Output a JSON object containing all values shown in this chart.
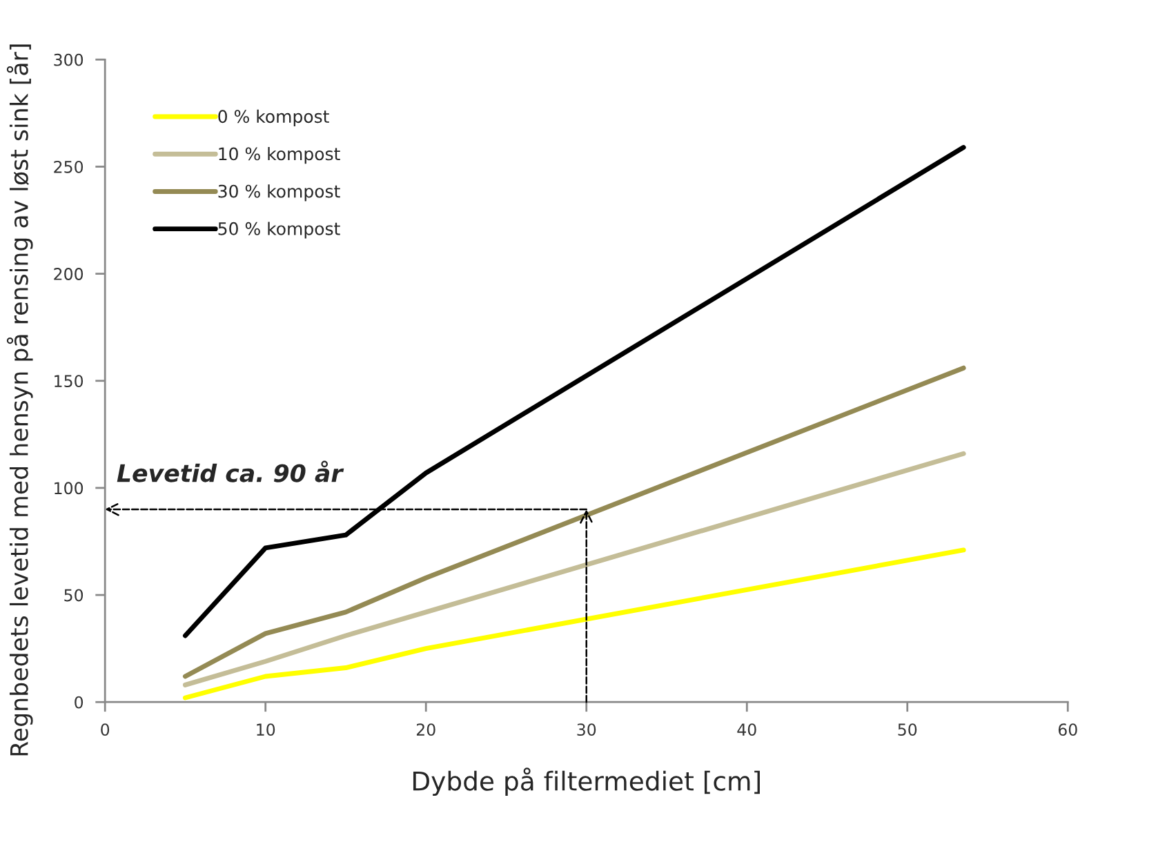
{
  "chart_data": {
    "type": "line",
    "xlabel": "Dybde på filtermediet [cm]",
    "ylabel": "Regnbedets levetid med hensyn på rensing av løst sink [år]",
    "x": [
      5,
      10,
      15,
      20,
      53.5
    ],
    "series": [
      {
        "name": "0 % kompost",
        "color": "#ffff00",
        "values": [
          2,
          12,
          16,
          25,
          71
        ]
      },
      {
        "name": "10 % kompost",
        "color": "#c4bd97",
        "values": [
          8,
          19,
          31,
          42,
          116
        ]
      },
      {
        "name": "30 % kompost",
        "color": "#948a54",
        "values": [
          12,
          32,
          42,
          58,
          156
        ]
      },
      {
        "name": "50 % kompost",
        "color": "#000000",
        "values": [
          31,
          72,
          78,
          107,
          259
        ]
      }
    ],
    "xlim": [
      0,
      60
    ],
    "xticks": [
      0,
      10,
      20,
      30,
      40,
      50,
      60
    ],
    "ylim": [
      0,
      300
    ],
    "yticks": [
      0,
      50,
      100,
      150,
      200,
      250,
      300
    ],
    "annotations": [
      "Levetid ca. 90 år"
    ],
    "grid": false,
    "legend": "top left",
    "line_style": "solid",
    "marker": "none"
  }
}
